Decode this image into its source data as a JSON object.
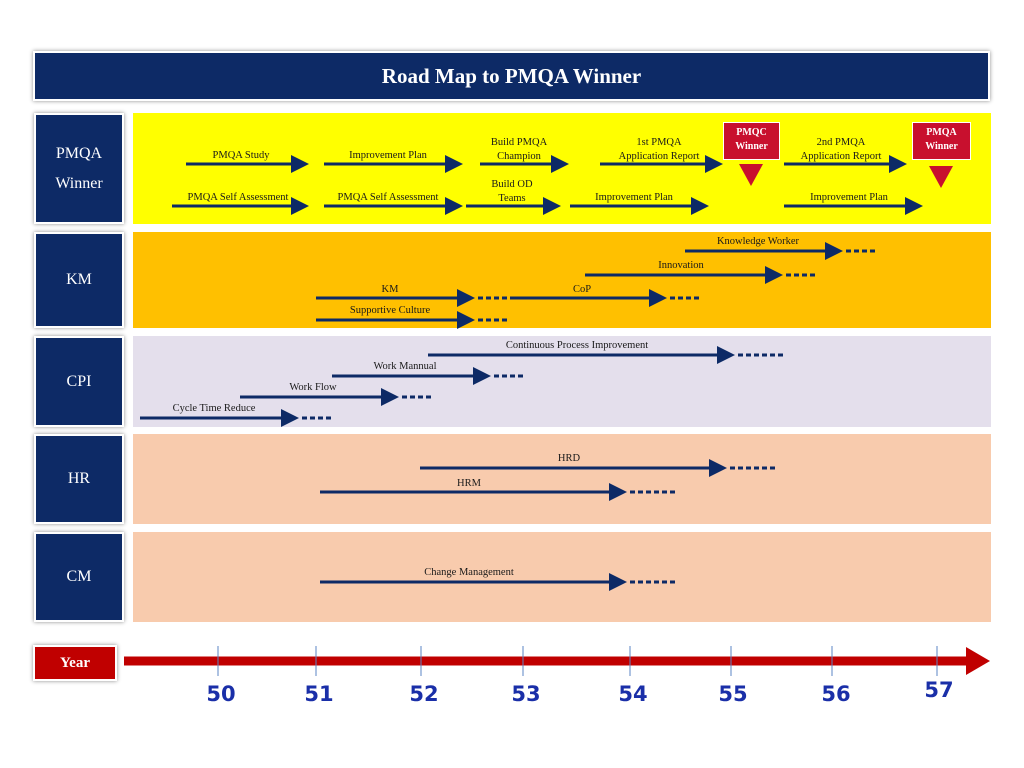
{
  "title": "Road Map to PMQA Winner",
  "rows": [
    {
      "label_lines": [
        "PMQA",
        "Winner"
      ]
    },
    {
      "label_lines": [
        "KM"
      ]
    },
    {
      "label_lines": [
        "CPI"
      ]
    },
    {
      "label_lines": [
        "HR"
      ]
    },
    {
      "label_lines": [
        "CM"
      ]
    }
  ],
  "pmqa": {
    "study": "PMQA Study",
    "improvement_plan_1": "Improvement Plan",
    "build_champion_1": "Build PMQA",
    "build_champion_2": "Champion",
    "first_report_1": "1st PMQA",
    "first_report_2": "Application Report",
    "second_report_1": "2nd PMQA",
    "second_report_2": "Application Report",
    "self_assessment_1": "PMQA Self Assessment",
    "self_assessment_2": "PMQA Self Assessment",
    "build_od_1": "Build OD",
    "build_od_2": "Teams",
    "improvement_plan_2": "Improvement Plan",
    "improvement_plan_3": "Improvement Plan",
    "pmqc_badge_1": "PMQC",
    "pmqc_badge_2": "Winner",
    "pmqa_badge_1": "PMQA",
    "pmqa_badge_2": "Winner"
  },
  "km": {
    "knowledge_worker": "Knowledge Worker",
    "innovation": "Innovation",
    "km": "KM",
    "cop": "CoP",
    "supportive_culture": "Supportive Culture"
  },
  "cpi": {
    "continuous": "Continuous Process Improvement",
    "work_manual": "Work Mannual",
    "work_flow": "Work Flow",
    "cycle_time": "Cycle Time Reduce"
  },
  "hr": {
    "hrd": "HRD",
    "hrm": "HRM"
  },
  "cm": {
    "change_management": "Change Management"
  },
  "year_label": "Year",
  "years": [
    "50",
    "51",
    "52",
    "53",
    "54",
    "55",
    "56",
    "57"
  ],
  "colors": {
    "navy": "#0d2a66",
    "pmqa_band": "#ffff00",
    "km_band": "#ffc000",
    "cpi_band": "#e4dfec",
    "hr_band": "#f8cbad",
    "cm_band": "#f8cbad",
    "red": "#c00000",
    "year_text": "#1a2fa8"
  }
}
